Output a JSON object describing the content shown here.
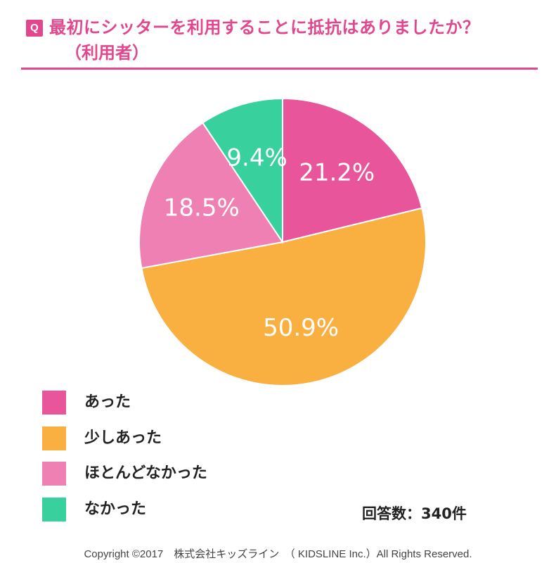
{
  "header": {
    "badge": "Q",
    "title": "最初にシッターを利用することに抵抗はありましたか？",
    "subtitle": "（利用者）"
  },
  "chart_data": {
    "type": "pie",
    "start_angle": "12 o'clock",
    "direction": "clockwise",
    "slices": [
      {
        "label": "あった",
        "value": 21.2,
        "display": "21.2%",
        "color": "#e8559a"
      },
      {
        "label": "少しあった",
        "value": 50.9,
        "display": "50.9%",
        "color": "#f9b040"
      },
      {
        "label": "ほとんどなかった",
        "value": 18.5,
        "display": "18.5%",
        "color": "#ef80b4"
      },
      {
        "label": "なかった",
        "value": 9.4,
        "display": "9.4%",
        "color": "#38d09c"
      }
    ],
    "legend_placement": "bottom-left"
  },
  "responses": "回答数：340件",
  "footer": "Copyright ©2017　株式会社キッズライン　（ KIDSLINE Inc.）All Rights Reserved."
}
